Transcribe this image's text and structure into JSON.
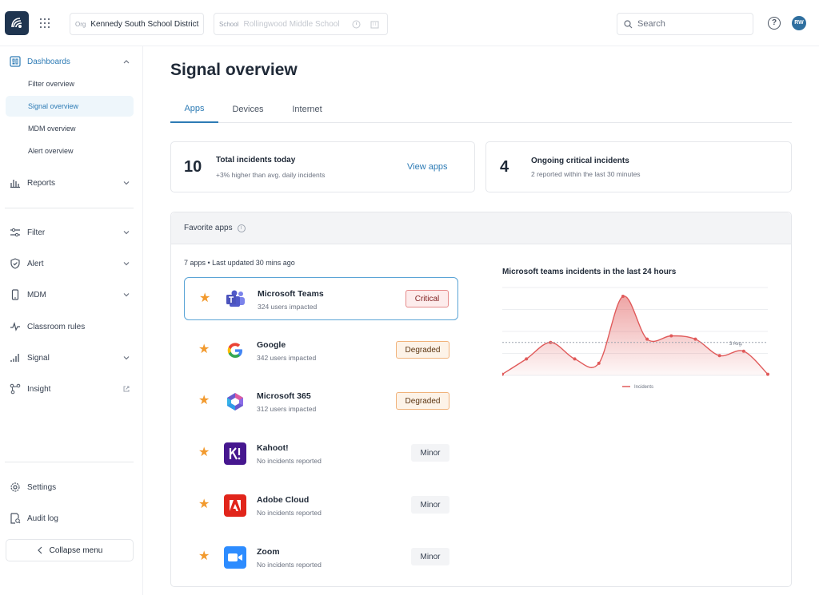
{
  "topbar": {
    "org": {
      "prefix": "Org",
      "value": "Kennedy South School District"
    },
    "school": {
      "prefix": "School",
      "value": "Rollingwood Middle School"
    },
    "search_placeholder": "Search",
    "help_glyph": "?",
    "avatar_initials": "RW"
  },
  "sidebar": {
    "dashboards": "Dashboards",
    "dashboard_items": [
      "Filter overview",
      "Signal overview",
      "MDM overview",
      "Alert overview"
    ],
    "reports": "Reports",
    "filter": "Filter",
    "alert": "Alert",
    "mdm": "MDM",
    "classroom_rules": "Classroom rules",
    "signal": "Signal",
    "insight": "Insight",
    "settings": "Settings",
    "audit_log": "Audit log",
    "collapse": "Collapse menu"
  },
  "main": {
    "title": "Signal overview",
    "tabs": [
      "Apps",
      "Devices",
      "Internet"
    ],
    "incidents_card": {
      "count": "10",
      "title": "Total incidents today",
      "sub": "+3% higher than avg. daily incidents",
      "link": "View apps"
    },
    "critical_card": {
      "count": "4",
      "title": "Ongoing critical incidents",
      "sub": "2 reported within the last 30 minutes"
    },
    "favorites": {
      "title": "Favorite apps",
      "meta": "7 apps • Last updated 30 mins ago",
      "apps": [
        {
          "name": "Microsoft Teams",
          "sub": "324 users impacted",
          "status": "Critical"
        },
        {
          "name": "Google",
          "sub": "342 users impacted",
          "status": "Degraded"
        },
        {
          "name": "Microsoft 365",
          "sub": "312 users impacted",
          "status": "Degraded"
        },
        {
          "name": "Kahoot!",
          "sub": "No incidents reported",
          "status": "Minor"
        },
        {
          "name": "Adobe Cloud",
          "sub": "No incidents reported",
          "status": "Minor"
        },
        {
          "name": "Zoom",
          "sub": "No incidents reported",
          "status": "Minor"
        }
      ]
    },
    "colors": {
      "accent": "#2d7bb5",
      "critical": "#e58a8a",
      "degraded": "#f0b27a",
      "star": "#f29a2e",
      "chart_line": "#e05a5a"
    }
  },
  "chart_data": {
    "type": "area",
    "title": "Microsoft teams incidents in the last 24 hours",
    "x": [
      0,
      1,
      2,
      3,
      4,
      5,
      6,
      7,
      8,
      9,
      10,
      11
    ],
    "series": [
      {
        "name": "Incidents",
        "values": [
          0.1,
          1.5,
          3.0,
          1.5,
          1.1,
          7.2,
          3.3,
          3.6,
          3.3,
          1.8,
          2.2,
          0.1
        ]
      }
    ],
    "avg_line": {
      "label": "3 Avg.",
      "value": 3
    },
    "ylim": [
      0,
      8
    ],
    "grid": true,
    "legend": "bottom"
  }
}
